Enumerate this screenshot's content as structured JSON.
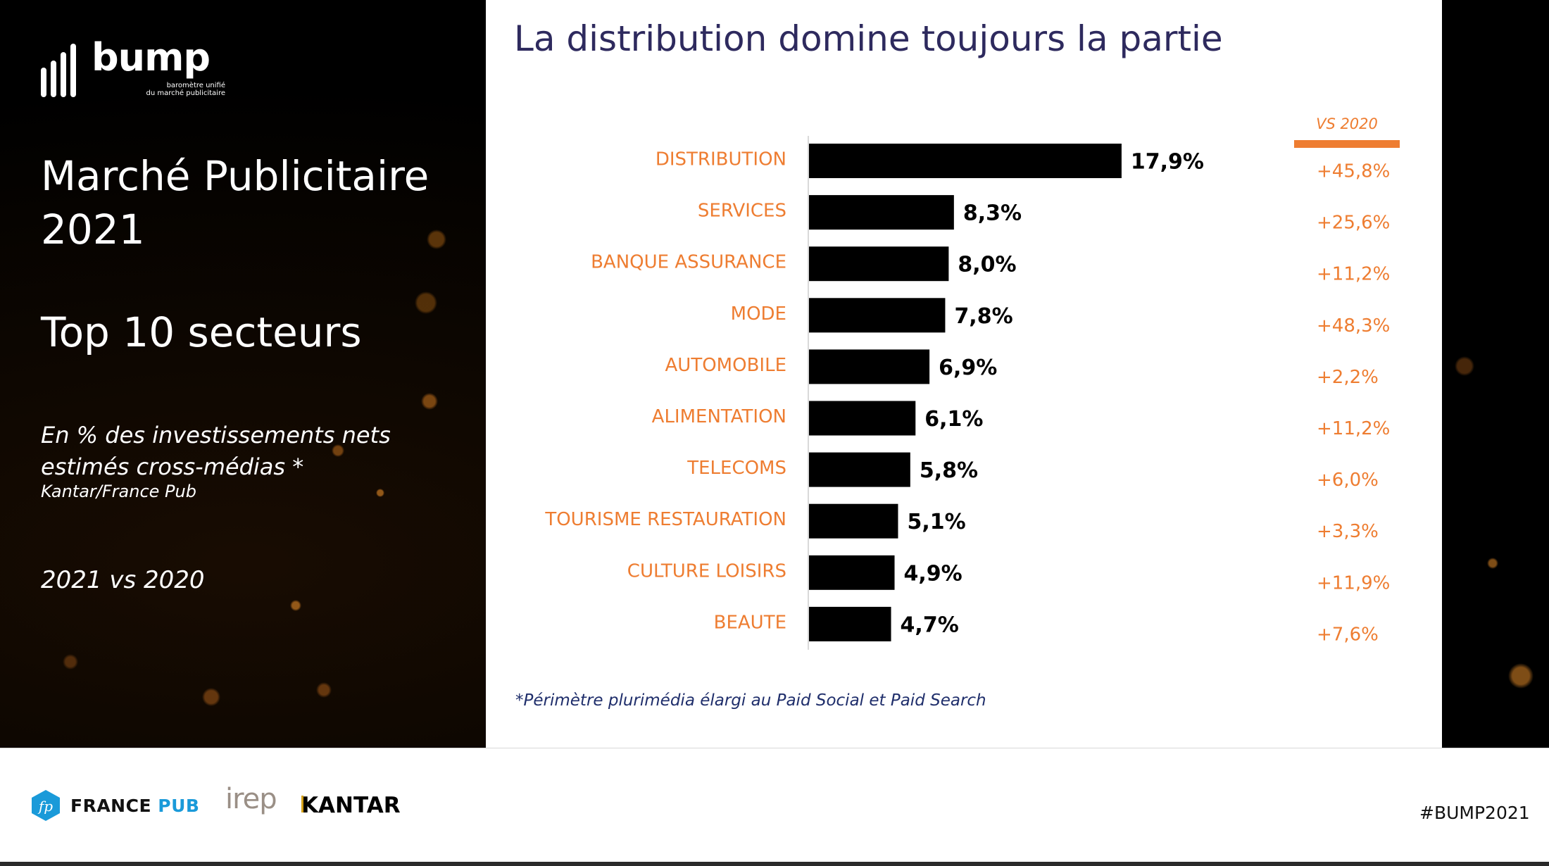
{
  "brand": {
    "name": "bump",
    "tagline_line1": "baromètre unifié",
    "tagline_line2": "du marché publicitaire"
  },
  "left_panel": {
    "title_line1": "Marché Publicitaire",
    "title_line2": "2021",
    "subtitle": "Top 10 secteurs",
    "description_line1": "En % des investissements nets",
    "description_line2": "estimés cross-médias *",
    "source": "Kantar/France Pub",
    "period": "2021 vs 2020"
  },
  "footnote": "*Périmètre plurimédia élargi au Paid Social et Paid Search",
  "footer": {
    "partner1_main": "FRANCE",
    "partner1_accent": "PUB",
    "partner1_icon_text": "fp",
    "partner2": "irep",
    "partner3": "KANTAR",
    "hashtag": "#BUMP2021"
  },
  "colors": {
    "accent_orange": "#ee7d31",
    "title_navy": "#2e2a5e",
    "bar": "#000000",
    "footnote_blue": "#1f2e6b",
    "france_pub_blue": "#1a9ad9"
  },
  "chart_data": {
    "type": "bar",
    "orientation": "horizontal",
    "title": "La distribution domine toujours la partie",
    "xlabel": "",
    "ylabel": "",
    "unit": "%",
    "xlim": [
      0,
      18
    ],
    "grid": false,
    "categories": [
      "DISTRIBUTION",
      "SERVICES",
      "BANQUE ASSURANCE",
      "MODE",
      "AUTOMOBILE",
      "ALIMENTATION",
      "TELECOMS",
      "TOURISME RESTAURATION",
      "CULTURE LOISIRS",
      "BEAUTE"
    ],
    "values": [
      17.9,
      8.3,
      8.0,
      7.8,
      6.9,
      6.1,
      5.8,
      5.1,
      4.9,
      4.7
    ],
    "value_labels": [
      "17,9%",
      "8,3%",
      "8,0%",
      "7,8%",
      "6,9%",
      "6,1%",
      "5,8%",
      "5,1%",
      "4,9%",
      "4,7%"
    ],
    "comparison": {
      "header": "VS 2020",
      "values": [
        45.8,
        25.6,
        11.2,
        48.3,
        2.2,
        11.2,
        6.0,
        3.3,
        11.9,
        7.6
      ],
      "labels": [
        "+45,8%",
        "+25,6%",
        "+11,2%",
        "+48,3%",
        "+2,2%",
        "+11,2%",
        "+6,0%",
        "+3,3%",
        "+11,9%",
        "+7,6%"
      ]
    }
  }
}
